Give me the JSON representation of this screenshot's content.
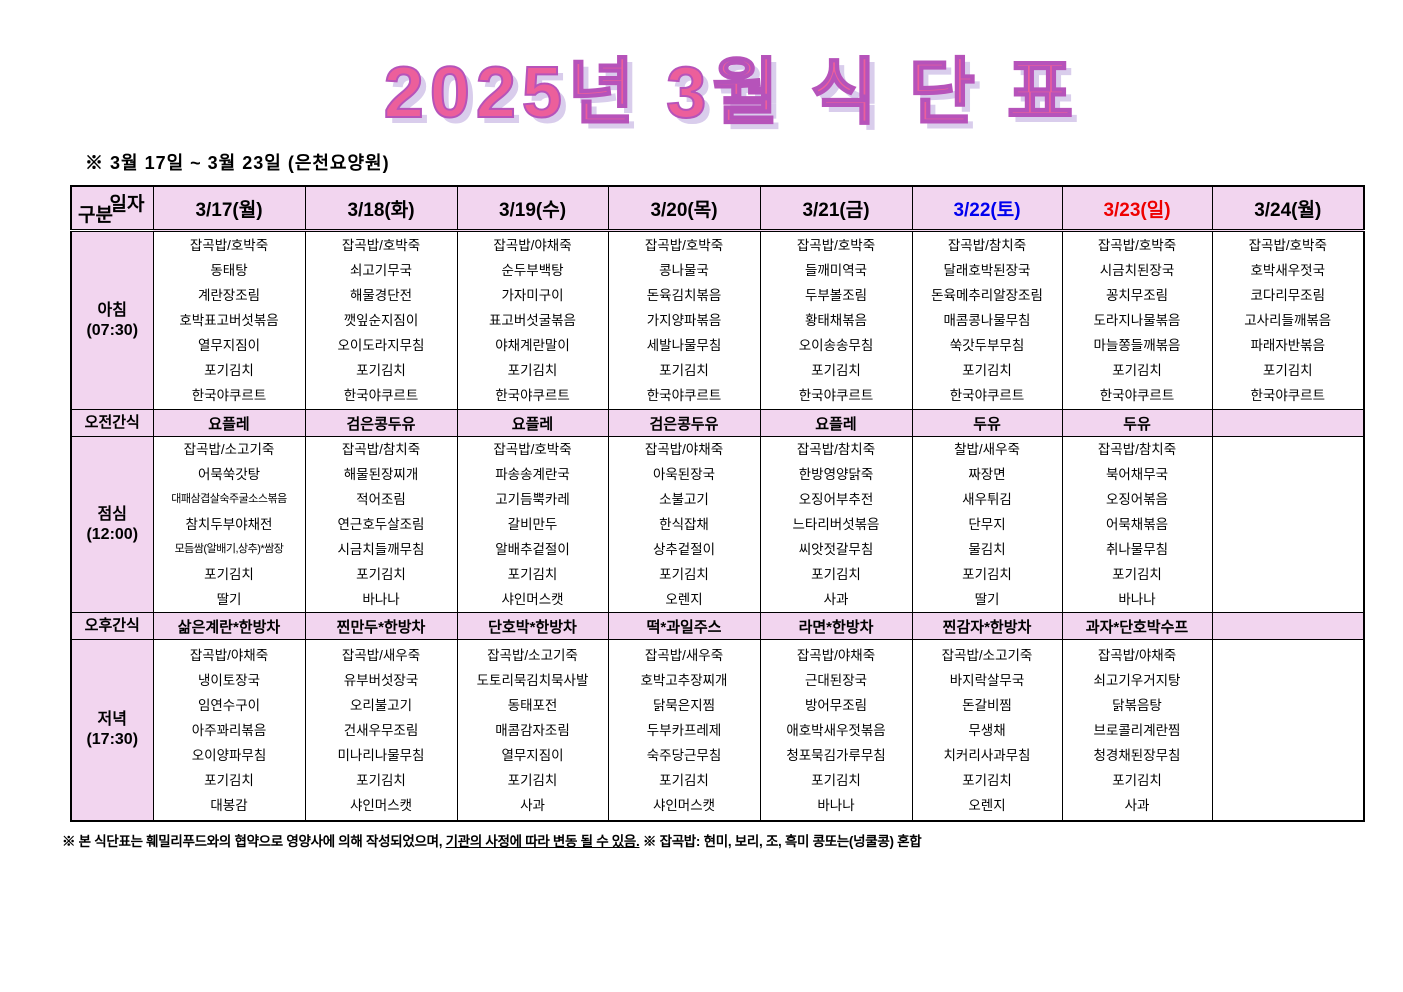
{
  "title": "2025년 3월 식 단 표",
  "subtitle": "※  3월 17일 ~ 3월 23일 (은천요양원)",
  "corner": {
    "top": "일자",
    "bottom": "구분"
  },
  "columns": [
    {
      "label": "3/17(월)",
      "color": "#000000"
    },
    {
      "label": "3/18(화)",
      "color": "#000000"
    },
    {
      "label": "3/19(수)",
      "color": "#000000"
    },
    {
      "label": "3/20(목)",
      "color": "#000000"
    },
    {
      "label": "3/21(금)",
      "color": "#000000"
    },
    {
      "label": "3/22(토)",
      "color": "#0000ee"
    },
    {
      "label": "3/23(일)",
      "color": "#ee0000"
    },
    {
      "label": "3/24(월)",
      "color": "#000000"
    }
  ],
  "rows": [
    {
      "label": "아침\n(07:30)",
      "type": "meal",
      "meal": "breakfast",
      "cells": [
        [
          "잡곡밥/호박죽",
          "동태탕",
          "계란장조림",
          "호박표고버섯볶음",
          "열무지짐이",
          "포기김치",
          "한국야쿠르트"
        ],
        [
          "잡곡밥/호박죽",
          "쇠고기무국",
          "해물경단전",
          "깻잎순지짐이",
          "오이도라지무침",
          "포기김치",
          "한국야쿠르트"
        ],
        [
          "잡곡밥/야채죽",
          "순두부백탕",
          "가자미구이",
          "표고버섯굴볶음",
          "야채계란말이",
          "포기김치",
          "한국야쿠르트"
        ],
        [
          "잡곡밥/호박죽",
          "콩나물국",
          "돈육김치볶음",
          "가지양파볶음",
          "세발나물무침",
          "포기김치",
          "한국야쿠르트"
        ],
        [
          "잡곡밥/호박죽",
          "들깨미역국",
          "두부볼조림",
          "황태채볶음",
          "오이송송무침",
          "포기김치",
          "한국야쿠르트"
        ],
        [
          "잡곡밥/참치죽",
          "달래호박된장국",
          "돈육메추리알장조림",
          "매콤콩나물무침",
          "쑥갓두부무침",
          "포기김치",
          "한국야쿠르트"
        ],
        [
          "잡곡밥/호박죽",
          "시금치된장국",
          "꽁치무조림",
          "도라지나물볶음",
          "마늘쫑들깨볶음",
          "포기김치",
          "한국야쿠르트"
        ],
        [
          "잡곡밥/호박죽",
          "호박새우젓국",
          "코다리무조림",
          "고사리들깨볶음",
          "파래자반볶음",
          "포기김치",
          "한국야쿠르트"
        ]
      ]
    },
    {
      "label": "오전간식",
      "type": "snack",
      "cells": [
        "요플레",
        "검은콩두유",
        "요플레",
        "검은콩두유",
        "요플레",
        "두유",
        "두유",
        ""
      ]
    },
    {
      "label": "점심\n(12:00)",
      "type": "meal",
      "meal": "lunch",
      "cells": [
        [
          "잡곡밥/소고기죽",
          "어묵쑥갓탕",
          "대패삼겹살숙주굴소스볶음",
          "참치두부야채전",
          "모듬쌈(알배기,상추)*쌈장",
          "포기김치",
          "딸기"
        ],
        [
          "잡곡밥/참치죽",
          "해물된장찌개",
          "적어조림",
          "연근호두살조림",
          "시금치들깨무침",
          "포기김치",
          "바나나"
        ],
        [
          "잡곡밥/호박죽",
          "파송송계란국",
          "고기듬뿍카레",
          "갈비만두",
          "알배추겉절이",
          "포기김치",
          "샤인머스캣"
        ],
        [
          "잡곡밥/야채죽",
          "아욱된장국",
          "소불고기",
          "한식잡채",
          "상추겉절이",
          "포기김치",
          "오렌지"
        ],
        [
          "잡곡밥/참치죽",
          "한방영양닭죽",
          "오징어부추전",
          "느타리버섯볶음",
          "씨앗젓갈무침",
          "포기김치",
          "사과"
        ],
        [
          "찰밥/새우죽",
          "짜장면",
          "새우튀김",
          "단무지",
          "물김치",
          "포기김치",
          "딸기"
        ],
        [
          "잡곡밥/참치죽",
          "북어채무국",
          "오징어볶음",
          "어묵채볶음",
          "취나물무침",
          "포기김치",
          "바나나"
        ],
        []
      ]
    },
    {
      "label": "오후간식",
      "type": "snack",
      "cells": [
        "삶은계란*한방차",
        "찐만두*한방차",
        "단호박*한방차",
        "떡*과일주스",
        "라면*한방차",
        "찐감자*한방차",
        "과자*단호박수프",
        ""
      ]
    },
    {
      "label": "저녁\n(17:30)",
      "type": "meal",
      "meal": "dinner",
      "cells": [
        [
          "잡곡밥/야채죽",
          "냉이토장국",
          "임연수구이",
          "아주꽈리볶음",
          "오이양파무침",
          "포기김치",
          "대봉감"
        ],
        [
          "잡곡밥/새우죽",
          "유부버섯장국",
          "오리불고기",
          "건새우무조림",
          "미나리나물무침",
          "포기김치",
          "샤인머스캣"
        ],
        [
          "잡곡밥/소고기죽",
          "도토리묵김치묵사발",
          "동태포전",
          "매콤감자조림",
          "열무지짐이",
          "포기김치",
          "사과"
        ],
        [
          "잡곡밥/새우죽",
          "호박고추장찌개",
          "닭묵은지찜",
          "두부카프레제",
          "숙주당근무침",
          "포기김치",
          "샤인머스캣"
        ],
        [
          "잡곡밥/야채죽",
          "근대된장국",
          "방어무조림",
          "애호박새우젓볶음",
          "청포묵김가루무침",
          "포기김치",
          "바나나"
        ],
        [
          "잡곡밥/소고기죽",
          "바지락살무국",
          "돈갈비찜",
          "무생채",
          "치커리사과무침",
          "포기김치",
          "오렌지"
        ],
        [
          "잡곡밥/야채죽",
          "쇠고기우거지탕",
          "닭볶음탕",
          "브로콜리계란찜",
          "청경채된장무침",
          "포기김치",
          "사과"
        ],
        []
      ]
    }
  ],
  "footer": {
    "part1": "※ 본 식단표는 훼밀리푸드와의 협약으로 영양사에 의해 작성되었으며, ",
    "underlined": "기관의 사정에 따라 변동 될 수 있음.",
    "part2": " ※ 잡곡밥: 현미, 보리, 조, 흑미 콩또는(넝쿨콩) 혼합"
  }
}
